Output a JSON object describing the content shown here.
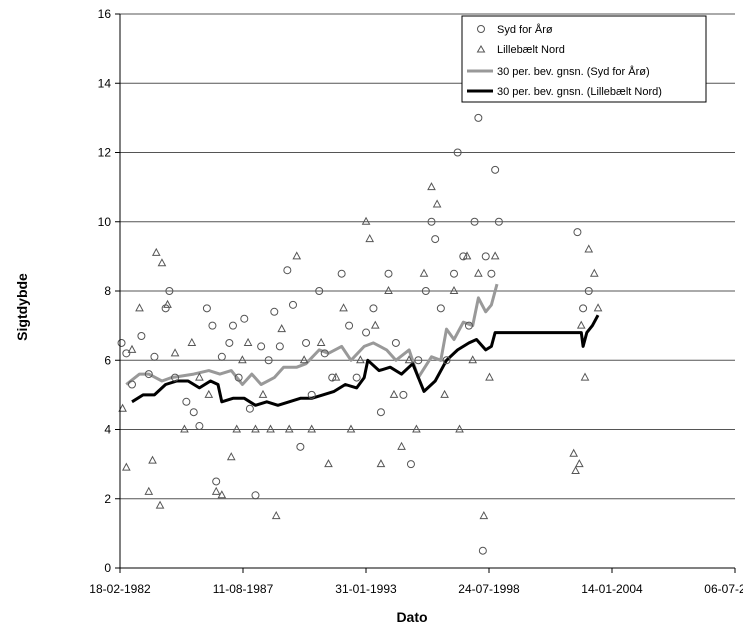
{
  "chart_data": {
    "type": "scatter",
    "xlabel": "Dato",
    "ylabel": "Sigtdybde",
    "xlim": [
      "1982-02-18",
      "2009-07-06"
    ],
    "ylim": [
      0,
      16
    ],
    "x_tick_labels": [
      "18-02-1982",
      "11-08-1987",
      "31-01-1993",
      "24-07-1998",
      "14-01-2004",
      "06-07-2009"
    ],
    "y_tick_labels": [
      "0",
      "2",
      "4",
      "6",
      "8",
      "10",
      "12",
      "14",
      "16"
    ],
    "grid": "horizontal",
    "legend_position": "top-right",
    "series": [
      {
        "name": "Syd for Årø",
        "kind": "scatter",
        "marker": "circle",
        "points": [
          [
            "1982-03-15",
            6.5
          ],
          [
            "1982-06-01",
            6.2
          ],
          [
            "1982-09-01",
            5.3
          ],
          [
            "1983-02-01",
            6.7
          ],
          [
            "1983-06-01",
            5.6
          ],
          [
            "1983-09-01",
            6.1
          ],
          [
            "1984-03-01",
            7.5
          ],
          [
            "1984-05-01",
            8.0
          ],
          [
            "1984-08-01",
            5.5
          ],
          [
            "1985-02-01",
            4.8
          ],
          [
            "1985-06-01",
            4.5
          ],
          [
            "1985-09-01",
            4.1
          ],
          [
            "1986-01-01",
            7.5
          ],
          [
            "1986-04-01",
            7.0
          ],
          [
            "1986-06-01",
            2.5
          ],
          [
            "1986-09-01",
            6.1
          ],
          [
            "1987-01-01",
            6.5
          ],
          [
            "1987-03-01",
            7.0
          ],
          [
            "1987-06-01",
            5.5
          ],
          [
            "1987-09-01",
            7.2
          ],
          [
            "1987-12-01",
            4.6
          ],
          [
            "1988-03-01",
            2.1
          ],
          [
            "1988-06-01",
            6.4
          ],
          [
            "1988-10-01",
            6.0
          ],
          [
            "1989-01-01",
            7.4
          ],
          [
            "1989-04-01",
            6.4
          ],
          [
            "1989-08-01",
            8.6
          ],
          [
            "1989-11-01",
            7.6
          ],
          [
            "1990-03-01",
            3.5
          ],
          [
            "1990-06-01",
            6.5
          ],
          [
            "1990-09-01",
            5.0
          ],
          [
            "1991-01-01",
            8.0
          ],
          [
            "1991-04-01",
            6.2
          ],
          [
            "1991-08-01",
            5.5
          ],
          [
            "1992-01-01",
            8.5
          ],
          [
            "1992-05-01",
            7.0
          ],
          [
            "1992-09-01",
            5.5
          ],
          [
            "1993-02-01",
            6.8
          ],
          [
            "1993-06-01",
            7.5
          ],
          [
            "1993-10-01",
            4.5
          ],
          [
            "1994-02-01",
            8.5
          ],
          [
            "1994-06-01",
            6.5
          ],
          [
            "1994-10-01",
            5.0
          ],
          [
            "1995-02-01",
            3.0
          ],
          [
            "1995-06-01",
            6.0
          ],
          [
            "1995-10-01",
            8.0
          ],
          [
            "1996-01-01",
            10.0
          ],
          [
            "1996-03-01",
            9.5
          ],
          [
            "1996-06-01",
            7.5
          ],
          [
            "1996-09-01",
            6.0
          ],
          [
            "1997-01-01",
            8.5
          ],
          [
            "1997-03-01",
            12.0
          ],
          [
            "1997-06-01",
            9.0
          ],
          [
            "1997-09-01",
            7.0
          ],
          [
            "1997-12-01",
            10.0
          ],
          [
            "1998-02-01",
            13.0
          ],
          [
            "1998-03-15",
            14.0
          ],
          [
            "1998-04-15",
            0.5
          ],
          [
            "1998-06-01",
            9.0
          ],
          [
            "1998-09-01",
            8.5
          ],
          [
            "1998-11-01",
            11.5
          ],
          [
            "1999-01-01",
            10.0
          ],
          [
            "2002-07-01",
            9.7
          ],
          [
            "2002-10-01",
            7.5
          ],
          [
            "2003-01-01",
            8.0
          ]
        ]
      },
      {
        "name": "Lillebælt Nord",
        "kind": "scatter",
        "marker": "triangle",
        "points": [
          [
            "1982-04-01",
            4.6
          ],
          [
            "1982-06-01",
            2.9
          ],
          [
            "1982-09-01",
            6.3
          ],
          [
            "1983-01-01",
            7.5
          ],
          [
            "1983-06-01",
            2.2
          ],
          [
            "1983-08-01",
            3.1
          ],
          [
            "1983-10-01",
            9.1
          ],
          [
            "1984-01-01",
            8.8
          ],
          [
            "1983-12-01",
            1.8
          ],
          [
            "1984-04-01",
            7.6
          ],
          [
            "1984-08-01",
            6.2
          ],
          [
            "1985-01-01",
            4.0
          ],
          [
            "1985-05-01",
            6.5
          ],
          [
            "1985-09-01",
            5.5
          ],
          [
            "1986-02-01",
            5.0
          ],
          [
            "1986-06-01",
            2.2
          ],
          [
            "1986-09-01",
            2.1
          ],
          [
            "1987-02-01",
            3.2
          ],
          [
            "1987-05-01",
            4.0
          ],
          [
            "1987-08-01",
            6.0
          ],
          [
            "1987-11-01",
            6.5
          ],
          [
            "1988-03-01",
            4.0
          ],
          [
            "1988-07-01",
            5.0
          ],
          [
            "1988-11-01",
            4.0
          ],
          [
            "1989-02-01",
            1.5
          ],
          [
            "1989-05-01",
            6.9
          ],
          [
            "1989-09-01",
            4.0
          ],
          [
            "1990-01-01",
            9.0
          ],
          [
            "1990-05-01",
            6.0
          ],
          [
            "1990-09-01",
            4.0
          ],
          [
            "1991-02-01",
            6.5
          ],
          [
            "1991-06-01",
            3.0
          ],
          [
            "1991-10-01",
            5.5
          ],
          [
            "1992-02-01",
            7.5
          ],
          [
            "1992-06-01",
            4.0
          ],
          [
            "1992-11-01",
            6.0
          ],
          [
            "1993-02-01",
            10.0
          ],
          [
            "1993-04-01",
            9.5
          ],
          [
            "1993-07-01",
            7.0
          ],
          [
            "1993-10-01",
            3.0
          ],
          [
            "1994-02-01",
            8.0
          ],
          [
            "1994-05-01",
            5.0
          ],
          [
            "1994-09-01",
            3.5
          ],
          [
            "1995-01-01",
            6.0
          ],
          [
            "1995-05-01",
            4.0
          ],
          [
            "1995-09-01",
            8.5
          ],
          [
            "1996-01-01",
            11.0
          ],
          [
            "1996-04-01",
            10.5
          ],
          [
            "1996-08-01",
            5.0
          ],
          [
            "1997-01-01",
            8.0
          ],
          [
            "1997-04-01",
            4.0
          ],
          [
            "1997-08-01",
            9.0
          ],
          [
            "1997-11-01",
            6.0
          ],
          [
            "1998-02-01",
            8.5
          ],
          [
            "1998-05-01",
            1.5
          ],
          [
            "1998-08-01",
            5.5
          ],
          [
            "1998-11-01",
            9.0
          ],
          [
            "2002-05-01",
            3.3
          ],
          [
            "2002-06-01",
            2.8
          ],
          [
            "2002-08-01",
            3.0
          ],
          [
            "2002-09-01",
            7.0
          ],
          [
            "2002-11-01",
            5.5
          ],
          [
            "2003-01-01",
            9.2
          ],
          [
            "2003-04-01",
            8.5
          ],
          [
            "2003-06-01",
            7.5
          ]
        ]
      },
      {
        "name": "30 per. bev. gnsn. (Syd for Årø)",
        "kind": "line",
        "color": "#999999",
        "points": [
          [
            "1982-06-01",
            5.3
          ],
          [
            "1983-01-01",
            5.6
          ],
          [
            "1983-06-01",
            5.6
          ],
          [
            "1984-01-01",
            5.4
          ],
          [
            "1984-06-01",
            5.5
          ],
          [
            "1985-06-01",
            5.6
          ],
          [
            "1986-02-01",
            5.7
          ],
          [
            "1986-08-01",
            5.6
          ],
          [
            "1987-02-01",
            5.7
          ],
          [
            "1987-08-01",
            5.3
          ],
          [
            "1988-01-01",
            5.6
          ],
          [
            "1988-06-01",
            5.3
          ],
          [
            "1989-01-01",
            5.5
          ],
          [
            "1989-06-01",
            5.8
          ],
          [
            "1990-01-01",
            5.8
          ],
          [
            "1990-06-01",
            5.9
          ],
          [
            "1991-01-01",
            6.3
          ],
          [
            "1991-06-01",
            6.2
          ],
          [
            "1992-01-01",
            6.4
          ],
          [
            "1992-06-01",
            6.0
          ],
          [
            "1993-01-01",
            6.4
          ],
          [
            "1993-06-01",
            6.5
          ],
          [
            "1994-01-01",
            6.3
          ],
          [
            "1994-06-01",
            6.0
          ],
          [
            "1995-01-01",
            6.3
          ],
          [
            "1995-06-01",
            5.5
          ],
          [
            "1996-01-01",
            6.1
          ],
          [
            "1996-06-01",
            6.0
          ],
          [
            "1996-09-01",
            6.9
          ],
          [
            "1997-01-01",
            6.6
          ],
          [
            "1997-06-01",
            7.1
          ],
          [
            "1997-11-01",
            7.0
          ],
          [
            "1998-02-01",
            7.8
          ],
          [
            "1998-06-01",
            7.4
          ],
          [
            "1998-09-01",
            7.6
          ],
          [
            "1998-12-01",
            8.2
          ]
        ]
      },
      {
        "name": "30 per. bev. gnsn. (Lillebælt Nord)",
        "kind": "line",
        "color": "#000000",
        "points": [
          [
            "1982-09-01",
            4.8
          ],
          [
            "1983-03-01",
            5.0
          ],
          [
            "1983-09-01",
            5.0
          ],
          [
            "1984-03-01",
            5.3
          ],
          [
            "1984-09-01",
            5.4
          ],
          [
            "1985-03-01",
            5.4
          ],
          [
            "1985-09-01",
            5.2
          ],
          [
            "1986-03-01",
            5.4
          ],
          [
            "1986-07-01",
            5.3
          ],
          [
            "1986-09-01",
            4.8
          ],
          [
            "1987-03-01",
            4.9
          ],
          [
            "1987-09-01",
            4.9
          ],
          [
            "1988-03-01",
            4.7
          ],
          [
            "1988-09-01",
            4.8
          ],
          [
            "1989-03-01",
            4.7
          ],
          [
            "1989-09-01",
            4.8
          ],
          [
            "1990-03-01",
            4.9
          ],
          [
            "1990-09-01",
            4.9
          ],
          [
            "1991-03-01",
            5.0
          ],
          [
            "1991-09-01",
            5.1
          ],
          [
            "1992-03-01",
            5.3
          ],
          [
            "1992-09-01",
            5.2
          ],
          [
            "1993-01-01",
            5.5
          ],
          [
            "1993-03-01",
            6.0
          ],
          [
            "1993-09-01",
            5.7
          ],
          [
            "1994-03-01",
            5.8
          ],
          [
            "1994-09-01",
            5.6
          ],
          [
            "1995-03-01",
            5.9
          ],
          [
            "1995-09-01",
            5.1
          ],
          [
            "1996-03-01",
            5.4
          ],
          [
            "1996-09-01",
            6.0
          ],
          [
            "1997-03-01",
            6.3
          ],
          [
            "1997-09-01",
            6.5
          ],
          [
            "1998-01-01",
            6.6
          ],
          [
            "1998-06-01",
            6.3
          ],
          [
            "1998-09-01",
            6.4
          ],
          [
            "1998-11-01",
            6.8
          ],
          [
            "2002-09-01",
            6.8
          ],
          [
            "2002-10-01",
            6.4
          ],
          [
            "2002-12-01",
            6.8
          ],
          [
            "2003-03-01",
            7.0
          ],
          [
            "2003-06-01",
            7.3
          ]
        ]
      }
    ]
  }
}
